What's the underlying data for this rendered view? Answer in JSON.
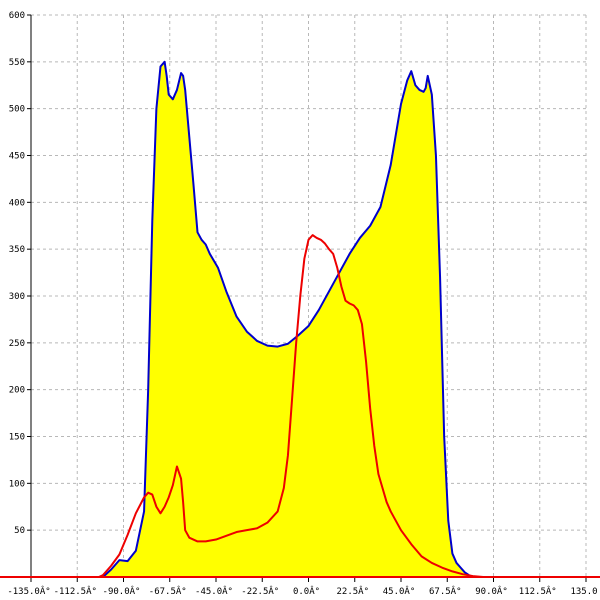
{
  "chart_data": {
    "type": "area",
    "title": "",
    "xlabel": "",
    "ylabel": "",
    "xlim": [
      -135,
      135
    ],
    "ylim": [
      0,
      600
    ],
    "grid": true,
    "x_ticks": [
      -135,
      -112.5,
      -90,
      -67.5,
      -45,
      -22.5,
      0,
      22.5,
      45,
      67.5,
      90,
      112.5,
      135
    ],
    "x_tick_labels": [
      "-135.0Â°",
      "-112.5Â°",
      "-90.0Â°",
      "-67.5Â°",
      "-45.0Â°",
      "-22.5Â°",
      "0.0Â°",
      "22.5Â°",
      "45.0Â°",
      "67.5Â°",
      "90.0Â°",
      "112.5Â°",
      "135.0"
    ],
    "y_ticks": [
      50,
      100,
      150,
      200,
      250,
      300,
      350,
      400,
      450,
      500,
      550,
      600
    ],
    "y_tick_labels": [
      "50",
      "100",
      "150",
      "200",
      "250",
      "300",
      "350",
      "400",
      "450",
      "500",
      "550",
      "600"
    ],
    "series": [
      {
        "color": "#0000cc",
        "fill": "#ffff00",
        "x": [
          -100,
          -96,
          -92,
          -88,
          -84,
          -80,
          -78,
          -76,
          -74,
          -72,
          -70,
          -69,
          -68,
          -66,
          -64,
          -62,
          -61,
          -60,
          -58,
          -56,
          -54,
          -52,
          -50,
          -48,
          -44,
          -40,
          -35,
          -30,
          -25,
          -20,
          -15,
          -10,
          -5,
          0,
          5,
          10,
          15,
          20,
          25,
          30,
          35,
          40,
          45,
          48,
          50,
          52,
          54,
          56,
          57,
          58,
          60,
          62,
          64,
          66,
          68,
          70,
          72,
          74,
          76,
          78,
          80,
          84,
          88,
          92,
          96,
          100
        ],
        "y": [
          0,
          8,
          18,
          17,
          28,
          70,
          200,
          380,
          500,
          545,
          550,
          535,
          515,
          510,
          520,
          538,
          535,
          520,
          470,
          420,
          368,
          360,
          355,
          345,
          330,
          305,
          278,
          262,
          252,
          247,
          246,
          249,
          258,
          268,
          285,
          305,
          325,
          345,
          362,
          375,
          395,
          440,
          505,
          530,
          540,
          525,
          520,
          518,
          522,
          535,
          515,
          450,
          320,
          150,
          60,
          25,
          15,
          10,
          5,
          2,
          0,
          0,
          0,
          0,
          0,
          0
        ]
      },
      {
        "color": "#ee0000",
        "fill": "none",
        "x": [
          -102,
          -100,
          -96,
          -92,
          -88,
          -84,
          -80,
          -78,
          -76,
          -74,
          -72,
          -70,
          -68,
          -66,
          -64,
          -62,
          -61,
          -60,
          -58,
          -56,
          -54,
          -50,
          -45,
          -40,
          -35,
          -30,
          -25,
          -20,
          -15,
          -12,
          -10,
          -8,
          -6,
          -4,
          -2,
          0,
          2,
          4,
          6,
          8,
          10,
          12,
          14,
          16,
          18,
          20,
          22,
          24,
          26,
          28,
          30,
          32,
          34,
          36,
          38,
          40,
          45,
          50,
          55,
          60,
          65,
          70,
          75,
          80,
          85,
          88,
          90
        ],
        "y": [
          0,
          2,
          12,
          24,
          45,
          68,
          85,
          90,
          88,
          75,
          68,
          75,
          85,
          98,
          118,
          105,
          80,
          50,
          42,
          40,
          38,
          38,
          40,
          44,
          48,
          50,
          52,
          58,
          70,
          95,
          130,
          190,
          250,
          300,
          340,
          360,
          365,
          362,
          360,
          356,
          350,
          345,
          330,
          310,
          295,
          292,
          290,
          285,
          270,
          230,
          180,
          140,
          110,
          95,
          80,
          70,
          50,
          35,
          22,
          15,
          10,
          6,
          3,
          1,
          0,
          0,
          0
        ]
      }
    ]
  }
}
